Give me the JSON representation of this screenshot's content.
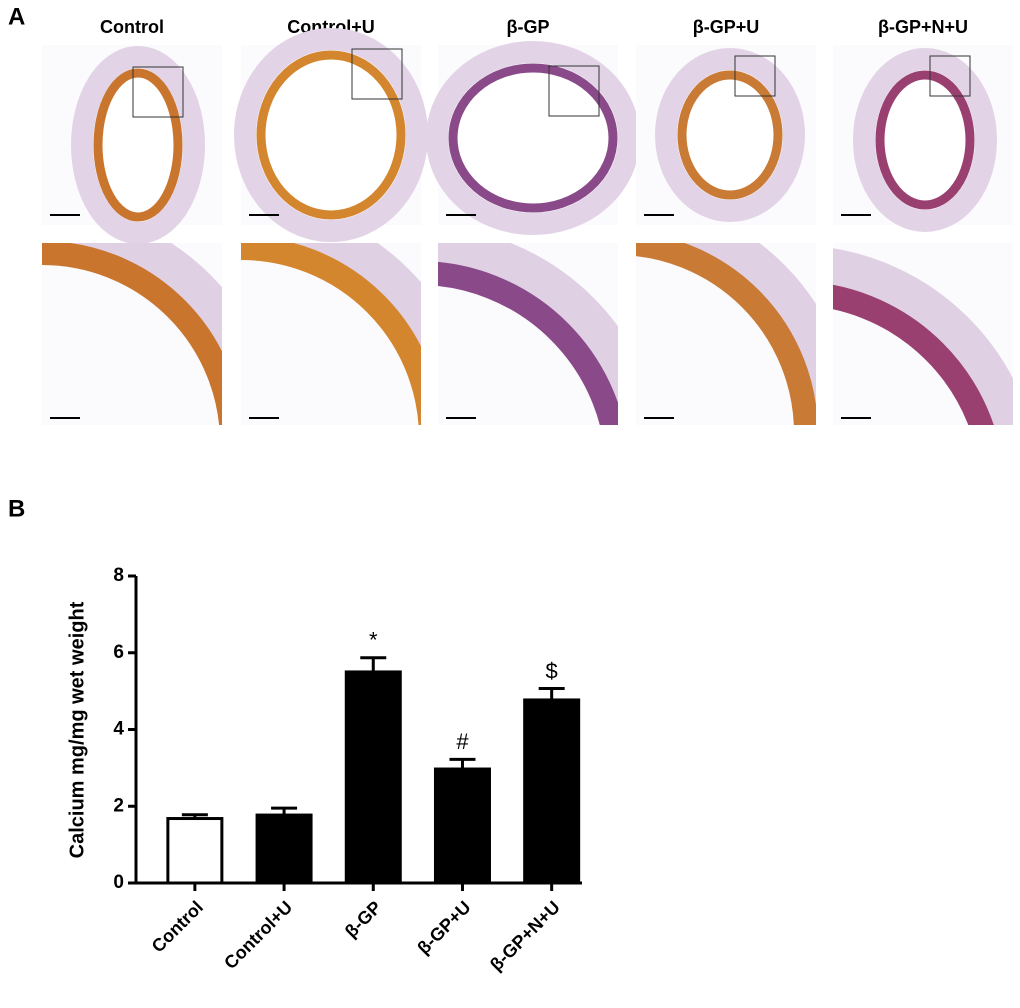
{
  "panel_a": {
    "label": "A",
    "columns": [
      "Control",
      "Control+U",
      "β-GP",
      "β-GP+U",
      "β-GP+N+U"
    ]
  },
  "panel_b": {
    "label": "B"
  },
  "chart_data": {
    "type": "bar",
    "categories": [
      "Control",
      "Control+U",
      "β-GP",
      "β-GP+U",
      "β-GP+N+U"
    ],
    "values": [
      1.68,
      1.77,
      5.5,
      2.97,
      4.77
    ],
    "errors": [
      0.1,
      0.18,
      0.37,
      0.25,
      0.3
    ],
    "annotations": [
      null,
      null,
      "*",
      "#",
      "$"
    ],
    "colors": [
      "#ffffff",
      "#000000",
      "#000000",
      "#000000",
      "#000000"
    ],
    "edgecolor": "#000000",
    "ylabel": "Calcium mg/mg wet weight",
    "ylim": [
      0,
      8
    ],
    "yticks": [
      0,
      2,
      4,
      6,
      8
    ],
    "grid": false
  }
}
